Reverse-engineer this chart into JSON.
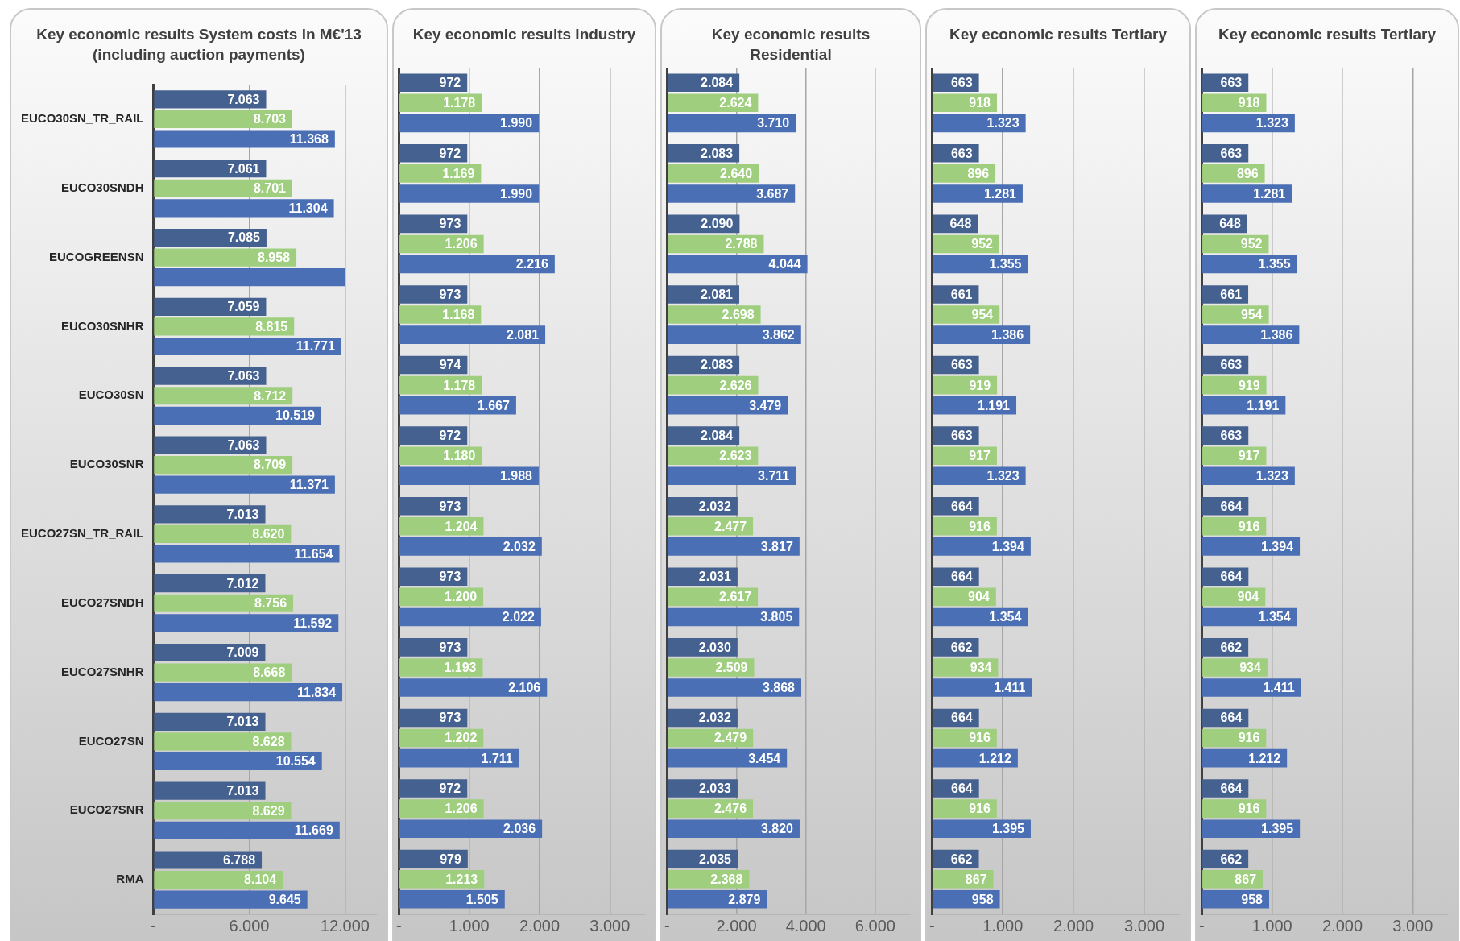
{
  "chart_data": [
    {
      "type": "bar",
      "orientation": "horizontal",
      "title": "Key economic results System costs in M€'13 (including auction payments)",
      "categories": [
        "EUCO30SN_TR_RAIL",
        "EUCO30SNDH",
        "EUCOGREENSN",
        "EUCO30SNHR",
        "EUCO30SN",
        "EUCO30SNR",
        "EUCO27SN_TR_RAIL",
        "EUCO27SNDH",
        "EUCO27SNHR",
        "EUCO27SN",
        "EUCO27SNR",
        "RMA"
      ],
      "xlim": [
        0,
        14000
      ],
      "xticks": [
        {
          "value": 0,
          "label": "-"
        },
        {
          "value": 6000,
          "label": "6.000"
        },
        {
          "value": 12000,
          "label": "12.000"
        }
      ],
      "grid": "x",
      "series": [
        {
          "color": "#44618f",
          "values": [
            7063,
            7061,
            7085,
            7059,
            7063,
            7063,
            7013,
            7012,
            7009,
            7013,
            7013,
            6788
          ],
          "value_labels": [
            "7.063",
            "7.061",
            "7.085",
            "7.059",
            "7.063",
            "7.063",
            "7.013",
            "7.012",
            "7.009",
            "7.013",
            "7.013",
            "6.788"
          ]
        },
        {
          "color": "#9fcf7e",
          "values": [
            8703,
            8701,
            8958,
            8815,
            8712,
            8709,
            8620,
            8756,
            8668,
            8628,
            8629,
            8104
          ],
          "value_labels": [
            "8.703",
            "8.701",
            "8.958",
            "8.815",
            "8.712",
            "8.709",
            "8.620",
            "8.756",
            "8.668",
            "8.628",
            "8.629",
            "8.104"
          ]
        },
        {
          "color": "#4a6fb5",
          "values": [
            11368,
            11304,
            12000,
            11771,
            10519,
            11371,
            11654,
            11592,
            11834,
            10554,
            11669,
            9645
          ],
          "value_labels": [
            "11.368",
            "11.304",
            null,
            "11.771",
            "10.519",
            "11.371",
            "11.654",
            "11.592",
            "11.834",
            "10.554",
            "11.669",
            "9.645"
          ]
        }
      ]
    },
    {
      "type": "bar",
      "orientation": "horizontal",
      "title": "Key economic results Industry",
      "categories": [
        null,
        null,
        null,
        null,
        null,
        null,
        null,
        null,
        null,
        null,
        null,
        null
      ],
      "xlim": [
        0,
        3500
      ],
      "xticks": [
        {
          "value": 0,
          "label": "-"
        },
        {
          "value": 1000,
          "label": "1.000"
        },
        {
          "value": 2000,
          "label": "2.000"
        },
        {
          "value": 3000,
          "label": "3.000"
        }
      ],
      "grid": "x",
      "tick_labels": "x",
      "series": [
        {
          "color": "#44618f",
          "values": [
            972,
            972,
            973,
            973,
            974,
            972,
            973,
            973,
            973,
            973,
            972,
            979
          ],
          "value_labels": [
            "972",
            "972",
            "973",
            "973",
            "974",
            "972",
            "973",
            "973",
            "973",
            "973",
            "972",
            "979"
          ]
        },
        {
          "color": "#9fcf7e",
          "values": [
            1178,
            1169,
            1206,
            1168,
            1178,
            1180,
            1204,
            1200,
            1193,
            1202,
            1206,
            1213
          ],
          "value_labels": [
            "1.178",
            "1.169",
            "1.206",
            "1.168",
            "1.178",
            "1.180",
            "1.204",
            "1.200",
            "1.193",
            "1.202",
            "1.206",
            "1.213"
          ]
        },
        {
          "color": "#4a6fb5",
          "values": [
            1990,
            1990,
            2216,
            2081,
            1667,
            1988,
            2032,
            2022,
            2106,
            1711,
            2036,
            1505
          ],
          "value_labels": [
            "1.990",
            "1.990",
            "2.216",
            "2.081",
            "1.667",
            "1.988",
            "2.032",
            "2.022",
            "2.106",
            "1.711",
            "2.036",
            "1.505"
          ]
        }
      ]
    },
    {
      "type": "bar",
      "orientation": "horizontal",
      "title": "Key economic results Residential",
      "categories": [
        null,
        null,
        null,
        null,
        null,
        null,
        null,
        null,
        null,
        null,
        null,
        null
      ],
      "xlim": [
        0,
        7000
      ],
      "xticks": [
        {
          "value": 0,
          "label": "-"
        },
        {
          "value": 2000,
          "label": "2.000"
        },
        {
          "value": 4000,
          "label": "4.000"
        },
        {
          "value": 6000,
          "label": "6.000"
        }
      ],
      "grid": "x",
      "tick_labels": "x",
      "series": [
        {
          "color": "#44618f",
          "values": [
            2084,
            2083,
            2090,
            2081,
            2083,
            2084,
            2032,
            2031,
            2030,
            2032,
            2033,
            2035
          ],
          "value_labels": [
            "2.084",
            "2.083",
            "2.090",
            "2.081",
            "2.083",
            "2.084",
            "2.032",
            "2.031",
            "2.030",
            "2.032",
            "2.033",
            "2.035"
          ]
        },
        {
          "color": "#9fcf7e",
          "values": [
            2624,
            2640,
            2788,
            2698,
            2626,
            2623,
            2477,
            2617,
            2509,
            2479,
            2476,
            2368
          ],
          "value_labels": [
            "2.624",
            "2.640",
            "2.788",
            "2.698",
            "2.626",
            "2.623",
            "2.477",
            "2.617",
            "2.509",
            "2.479",
            "2.476",
            "2.368"
          ]
        },
        {
          "color": "#4a6fb5",
          "values": [
            3710,
            3687,
            4044,
            3862,
            3479,
            3711,
            3817,
            3805,
            3868,
            3454,
            3820,
            2879
          ],
          "value_labels": [
            "3.710",
            "3.687",
            "4.044",
            "3.862",
            "3.479",
            "3.711",
            "3.817",
            "3.805",
            "3.868",
            "3.454",
            "3.820",
            "2.879"
          ]
        }
      ]
    },
    {
      "type": "bar",
      "orientation": "horizontal",
      "title": "Key economic results Tertiary",
      "categories": [
        null,
        null,
        null,
        null,
        null,
        null,
        null,
        null,
        null,
        null,
        null,
        null
      ],
      "xlim": [
        0,
        3500
      ],
      "xticks": [
        {
          "value": 0,
          "label": "-"
        },
        {
          "value": 1000,
          "label": "1.000"
        },
        {
          "value": 2000,
          "label": "2.000"
        },
        {
          "value": 3000,
          "label": "3.000"
        }
      ],
      "grid": "x",
      "tick_labels": "x",
      "series": [
        {
          "color": "#44618f",
          "values": [
            663,
            663,
            648,
            661,
            663,
            663,
            664,
            664,
            662,
            664,
            664,
            662
          ],
          "value_labels": [
            "663",
            "663",
            "648",
            "661",
            "663",
            "663",
            "664",
            "664",
            "662",
            "664",
            "664",
            "662"
          ]
        },
        {
          "color": "#9fcf7e",
          "values": [
            918,
            896,
            952,
            954,
            919,
            917,
            916,
            904,
            934,
            916,
            916,
            867
          ],
          "value_labels": [
            "918",
            "896",
            "952",
            "954",
            "919",
            "917",
            "916",
            "904",
            "934",
            "916",
            "916",
            "867"
          ]
        },
        {
          "color": "#4a6fb5",
          "values": [
            1323,
            1281,
            1355,
            1386,
            1191,
            1323,
            1394,
            1354,
            1411,
            1212,
            1395,
            958
          ],
          "value_labels": [
            "1.323",
            "1.281",
            "1.355",
            "1.386",
            "1.191",
            "1.323",
            "1.394",
            "1.354",
            "1.411",
            "1.212",
            "1.395",
            "958"
          ]
        }
      ]
    },
    {
      "type": "bar",
      "orientation": "horizontal",
      "title": "Key economic results Tertiary",
      "categories": [
        null,
        null,
        null,
        null,
        null,
        null,
        null,
        null,
        null,
        null,
        null,
        null
      ],
      "xlim": [
        0,
        3500
      ],
      "xticks": [
        {
          "value": 0,
          "label": "-"
        },
        {
          "value": 1000,
          "label": "1.000"
        },
        {
          "value": 2000,
          "label": "2.000"
        },
        {
          "value": 3000,
          "label": "3.000"
        }
      ],
      "grid": "x",
      "tick_labels": "x",
      "series": [
        {
          "color": "#44618f",
          "values": [
            663,
            663,
            648,
            661,
            663,
            663,
            664,
            664,
            662,
            664,
            664,
            662
          ],
          "value_labels": [
            "663",
            "663",
            "648",
            "661",
            "663",
            "663",
            "664",
            "664",
            "662",
            "664",
            "664",
            "662"
          ]
        },
        {
          "color": "#9fcf7e",
          "values": [
            918,
            896,
            952,
            954,
            919,
            917,
            916,
            904,
            934,
            916,
            916,
            867
          ],
          "value_labels": [
            "918",
            "896",
            "952",
            "954",
            "919",
            "917",
            "916",
            "904",
            "934",
            "916",
            "916",
            "867"
          ]
        },
        {
          "color": "#4a6fb5",
          "values": [
            1323,
            1281,
            1355,
            1386,
            1191,
            1323,
            1394,
            1354,
            1411,
            1212,
            1395,
            958
          ],
          "value_labels": [
            "1.323",
            "1.281",
            "1.355",
            "1.386",
            "1.191",
            "1.323",
            "1.394",
            "1.354",
            "1.411",
            "1.212",
            "1.395",
            "958"
          ]
        }
      ]
    }
  ]
}
